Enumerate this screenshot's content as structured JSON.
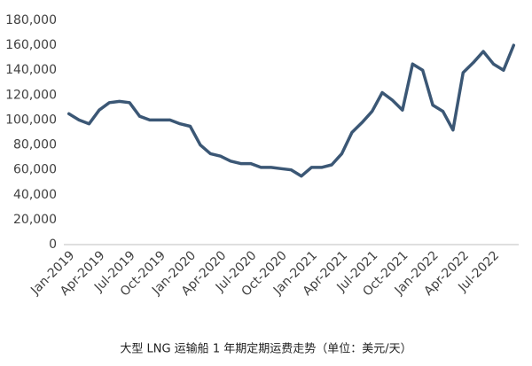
{
  "chart_data": {
    "type": "line",
    "title": "大型 LNG 运输船 1 年期定期运费走势（单位：美元/天）",
    "categories": [
      "Jan-2019",
      null,
      null,
      "Apr-2019",
      null,
      null,
      "Jul-2019",
      null,
      null,
      "Oct-2019",
      null,
      null,
      "Jan-2020",
      null,
      null,
      "Apr-2020",
      null,
      null,
      "Jul-2020",
      null,
      null,
      "Oct-2020",
      null,
      null,
      "Jan-2021",
      null,
      null,
      "Apr-2021",
      null,
      null,
      "Jul-2021",
      null,
      null,
      "Oct-2021",
      null,
      null,
      "Jan-2022",
      null,
      null,
      "Apr-2022",
      null,
      null,
      "Jul-2022",
      null,
      null
    ],
    "series": [
      {
        "color": "#3b5775",
        "values": [
          105000,
          100000,
          97000,
          108000,
          114000,
          115000,
          114000,
          103000,
          100000,
          100000,
          100000,
          97000,
          95000,
          80000,
          73000,
          71000,
          67000,
          65000,
          65000,
          62000,
          62000,
          61000,
          60000,
          55000,
          62000,
          62000,
          64000,
          73000,
          90000,
          98000,
          107000,
          122000,
          116000,
          108000,
          145000,
          140000,
          112000,
          107000,
          92000,
          138000,
          146000,
          155000,
          145000,
          140000,
          160000
        ]
      }
    ],
    "ylim": [
      0,
      180000
    ],
    "yticks": [
      0,
      {
        "value": 20000,
        "label": "20,000"
      },
      {
        "value": 40000,
        "label": "40,000"
      },
      {
        "value": 60000,
        "label": "60,000"
      },
      {
        "value": 80000,
        "label": "80,000"
      },
      {
        "value": 100000,
        "label": "100,000"
      },
      {
        "value": 120000,
        "label": "120,000"
      },
      {
        "value": 140000,
        "label": "140,000"
      },
      {
        "value": 160000,
        "label": "160,000"
      },
      {
        "value": 180000,
        "label": "180,000"
      }
    ]
  }
}
